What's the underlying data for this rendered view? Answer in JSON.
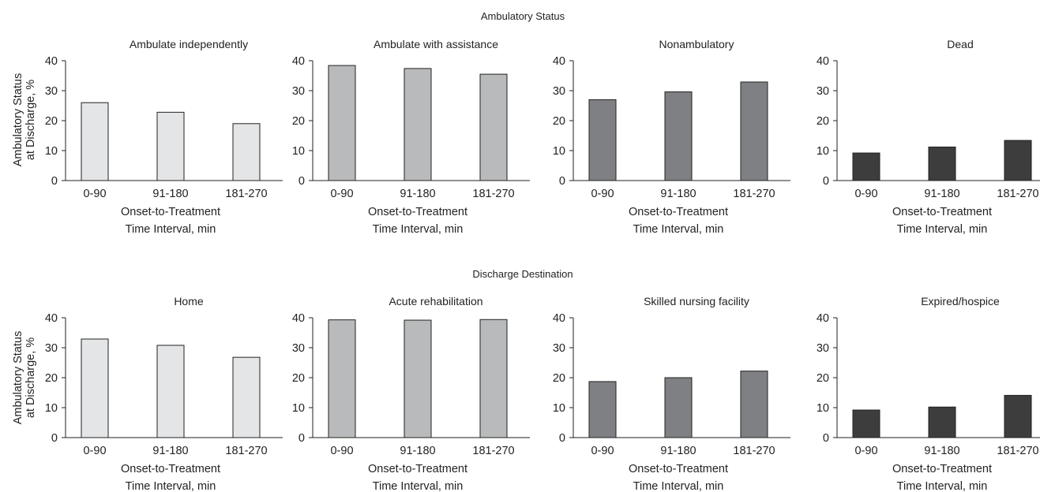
{
  "figure": {
    "row_titles": [
      "Ambulatory Status",
      "Discharge Destination"
    ],
    "ylabel_lines": [
      "Ambulatory Status",
      "at Discharge, %"
    ],
    "xlabel_lines": [
      "Onset-to-Treatment",
      "Time Interval, min"
    ]
  },
  "chart_data": [
    {
      "type": "bar",
      "title": "Ambulate independently",
      "categories": [
        "0-90",
        "91-180",
        "181-270"
      ],
      "values": [
        26,
        22.8,
        19
      ],
      "ylim": [
        0,
        40
      ],
      "yticks": [
        0,
        10,
        20,
        30,
        40
      ],
      "color": "#e4e5e7"
    },
    {
      "type": "bar",
      "title": "Ambulate with assistance",
      "categories": [
        "0-90",
        "91-180",
        "181-270"
      ],
      "values": [
        38.4,
        37.4,
        35.5
      ],
      "ylim": [
        0,
        40
      ],
      "yticks": [
        0,
        10,
        20,
        30,
        40
      ],
      "color": "#b9babc"
    },
    {
      "type": "bar",
      "title": "Nonambulatory",
      "categories": [
        "0-90",
        "91-180",
        "181-270"
      ],
      "values": [
        27,
        29.6,
        32.9
      ],
      "ylim": [
        0,
        40
      ],
      "yticks": [
        0,
        10,
        20,
        30,
        40
      ],
      "color": "#7f8083"
    },
    {
      "type": "bar",
      "title": "Dead",
      "categories": [
        "0-90",
        "91-180",
        "181-270"
      ],
      "values": [
        9.2,
        11.2,
        13.4
      ],
      "ylim": [
        0,
        40
      ],
      "yticks": [
        0,
        10,
        20,
        30,
        40
      ],
      "color": "#3d3d3e"
    },
    {
      "type": "bar",
      "title": "Home",
      "categories": [
        "0-90",
        "91-180",
        "181-270"
      ],
      "values": [
        32.9,
        30.8,
        26.8
      ],
      "ylim": [
        0,
        40
      ],
      "yticks": [
        0,
        10,
        20,
        30,
        40
      ],
      "color": "#e4e5e7"
    },
    {
      "type": "bar",
      "title": "Acute rehabilitation",
      "categories": [
        "0-90",
        "91-180",
        "181-270"
      ],
      "values": [
        39.3,
        39.2,
        39.4
      ],
      "ylim": [
        0,
        40
      ],
      "yticks": [
        0,
        10,
        20,
        30,
        40
      ],
      "color": "#b9babc"
    },
    {
      "type": "bar",
      "title": "Skilled nursing facility",
      "categories": [
        "0-90",
        "91-180",
        "181-270"
      ],
      "values": [
        18.7,
        20,
        22.2
      ],
      "ylim": [
        0,
        40
      ],
      "yticks": [
        0,
        10,
        20,
        30,
        40
      ],
      "color": "#7f8083"
    },
    {
      "type": "bar",
      "title": "Expired/hospice",
      "categories": [
        "0-90",
        "91-180",
        "181-270"
      ],
      "values": [
        9.2,
        10.2,
        14.1
      ],
      "ylim": [
        0,
        40
      ],
      "yticks": [
        0,
        10,
        20,
        30,
        40
      ],
      "color": "#3d3d3e"
    }
  ]
}
